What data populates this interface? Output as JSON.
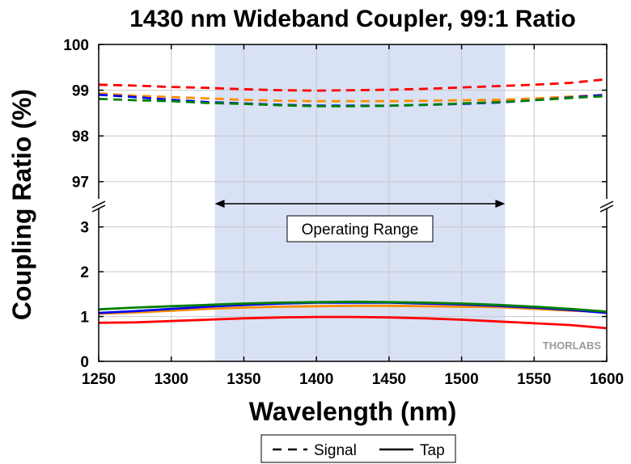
{
  "chart_data": {
    "type": "line",
    "title": "1430 nm Wideband Coupler, 99:1 Ratio",
    "xlabel": "Wavelength (nm)",
    "ylabel": "Coupling Ratio (%)",
    "xlim": [
      1250,
      1600
    ],
    "x_ticks": [
      1250,
      1300,
      1350,
      1400,
      1450,
      1500,
      1550,
      1600
    ],
    "y_broken_axis": {
      "lower_range": [
        0,
        3.5
      ],
      "upper_range": [
        96.5,
        100
      ],
      "lower_ticks": [
        0,
        1,
        2,
        3
      ],
      "upper_ticks": [
        97,
        98,
        99,
        100
      ]
    },
    "grid": true,
    "shaded_region": {
      "x": [
        1330,
        1530
      ],
      "color": "#d9e1f5"
    },
    "annotation": {
      "text": "Operating Range",
      "x_range": [
        1330,
        1530
      ]
    },
    "x": [
      1250,
      1275,
      1300,
      1325,
      1350,
      1375,
      1400,
      1425,
      1450,
      1475,
      1500,
      1525,
      1550,
      1575,
      1600
    ],
    "series": [
      {
        "color": "#ff0000",
        "style": "dashed",
        "values": [
          99.12,
          99.1,
          99.07,
          99.05,
          99.02,
          99.0,
          98.99,
          99.0,
          99.01,
          99.03,
          99.06,
          99.09,
          99.12,
          99.16,
          99.24
        ]
      },
      {
        "color": "#ff8c00",
        "style": "dashed",
        "values": [
          98.93,
          98.88,
          98.85,
          98.82,
          98.79,
          98.77,
          98.76,
          98.76,
          98.76,
          98.77,
          98.78,
          98.79,
          98.82,
          98.86,
          98.9
        ]
      },
      {
        "color": "#0000ff",
        "style": "dashed",
        "values": [
          98.9,
          98.85,
          98.79,
          98.74,
          98.71,
          98.68,
          98.66,
          98.66,
          98.66,
          98.68,
          98.7,
          98.73,
          98.78,
          98.84,
          98.9
        ]
      },
      {
        "color": "#008000",
        "style": "dashed",
        "values": [
          98.81,
          98.78,
          98.76,
          98.72,
          98.7,
          98.67,
          98.65,
          98.65,
          98.66,
          98.68,
          98.71,
          98.74,
          98.78,
          98.83,
          98.87
        ]
      },
      {
        "color": "#ff0000",
        "style": "solid",
        "values": [
          0.86,
          0.87,
          0.9,
          0.93,
          0.96,
          0.98,
          0.99,
          0.99,
          0.98,
          0.96,
          0.93,
          0.89,
          0.85,
          0.81,
          0.74
        ]
      },
      {
        "color": "#ff8c00",
        "style": "solid",
        "values": [
          1.06,
          1.09,
          1.13,
          1.17,
          1.2,
          1.22,
          1.23,
          1.24,
          1.24,
          1.23,
          1.22,
          1.21,
          1.17,
          1.13,
          1.1
        ]
      },
      {
        "color": "#0000ff",
        "style": "solid",
        "values": [
          1.08,
          1.12,
          1.17,
          1.22,
          1.26,
          1.29,
          1.31,
          1.31,
          1.31,
          1.29,
          1.27,
          1.24,
          1.2,
          1.15,
          1.08
        ]
      },
      {
        "color": "#008000",
        "style": "solid",
        "values": [
          1.16,
          1.2,
          1.23,
          1.26,
          1.29,
          1.31,
          1.32,
          1.33,
          1.32,
          1.31,
          1.29,
          1.26,
          1.22,
          1.17,
          1.11
        ]
      }
    ],
    "legend": {
      "placement": "bottom-center",
      "entries": [
        {
          "label": "Signal",
          "style": "dashed"
        },
        {
          "label": "Tap",
          "style": "solid"
        }
      ]
    },
    "watermark": "THORLABS"
  }
}
